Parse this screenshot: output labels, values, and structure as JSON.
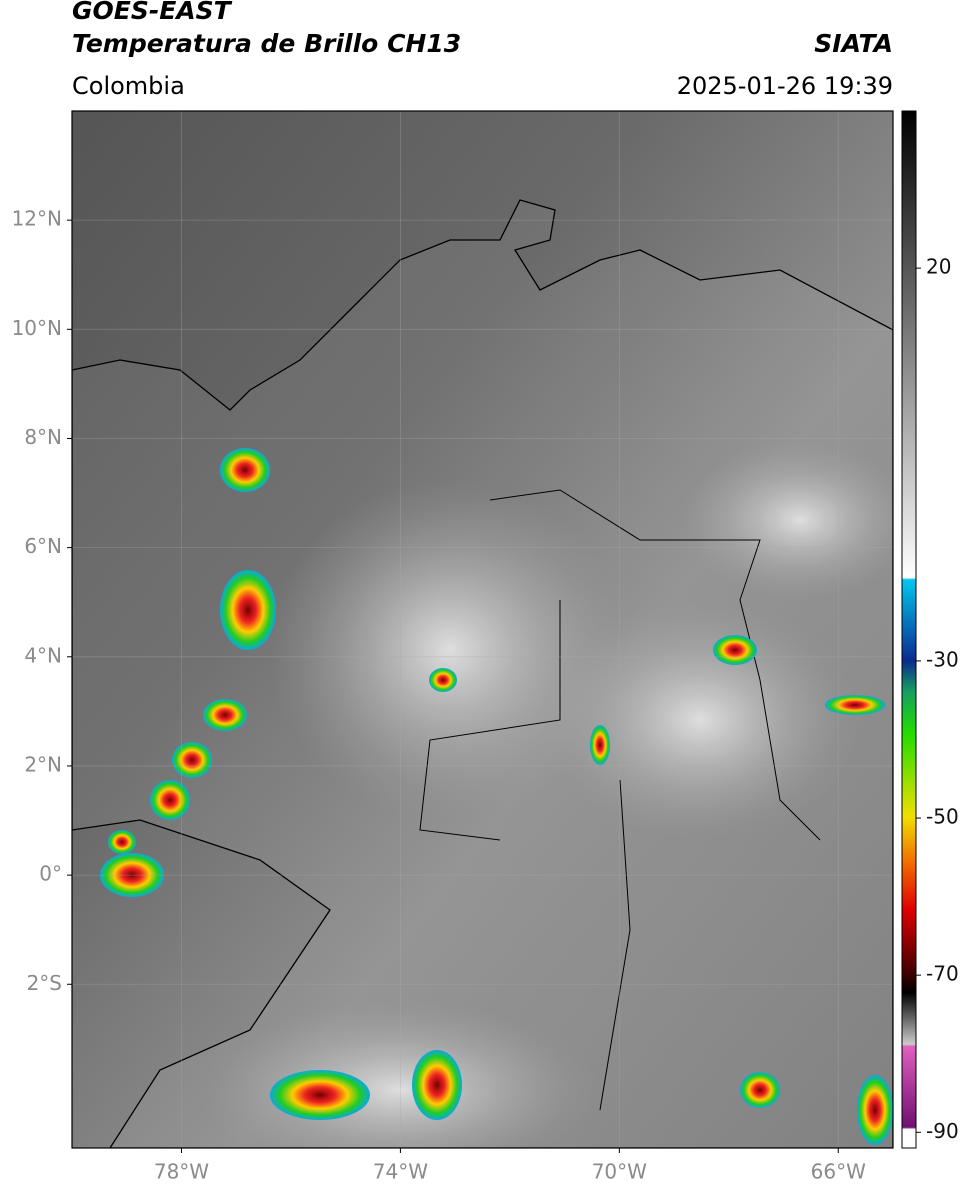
{
  "header": {
    "title": "GOES-EAST",
    "subtitle": "Temperatura de Brillo CH13",
    "source": "SIATA",
    "region": "Colombia",
    "datetime": "2025-01-26 19:39"
  },
  "map": {
    "xlim": [
      -80,
      -65
    ],
    "ylim": [
      -5,
      14
    ],
    "xticks": [
      {
        "value": -78,
        "label": "78°W"
      },
      {
        "value": -74,
        "label": "74°W"
      },
      {
        "value": -70,
        "label": "70°W"
      },
      {
        "value": -66,
        "label": "66°W"
      }
    ],
    "yticks": [
      {
        "value": 12,
        "label": "12°N"
      },
      {
        "value": 10,
        "label": "10°N"
      },
      {
        "value": 8,
        "label": "8°N"
      },
      {
        "value": 6,
        "label": "6°N"
      },
      {
        "value": 4,
        "label": "4°N"
      },
      {
        "value": 2,
        "label": "2°N"
      },
      {
        "value": 0,
        "label": "0°"
      },
      {
        "value": -2,
        "label": "2°S"
      }
    ],
    "grid": true
  },
  "colorbar": {
    "lim": [
      -92,
      40
    ],
    "ticks": [
      20,
      -30,
      -50,
      -70,
      -90
    ]
  }
}
